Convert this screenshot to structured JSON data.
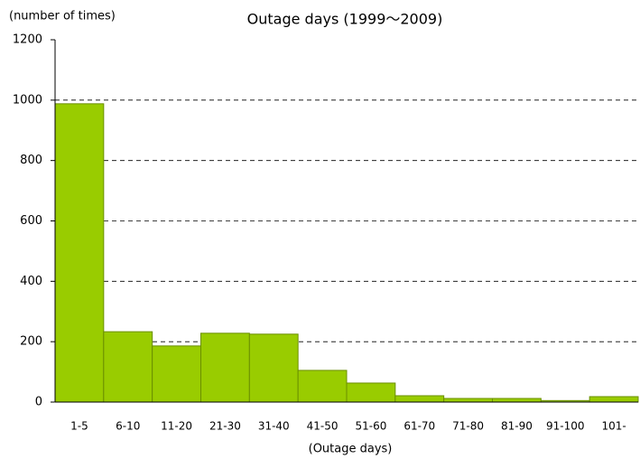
{
  "chart_data": {
    "type": "bar",
    "title": "Outage days (1999～2009)",
    "y_label": "(number of times)",
    "x_label": "(Outage days)",
    "categories": [
      "1-5",
      "6-10",
      "11-20",
      "21-30",
      "31-40",
      "41-50",
      "51-60",
      "61-70",
      "71-80",
      "81-90",
      "91-100",
      "101-"
    ],
    "values": [
      988,
      233,
      186,
      228,
      225,
      105,
      63,
      21,
      12,
      12,
      5,
      18
    ],
    "color": "#99cc00",
    "ylim": [
      0,
      1200
    ],
    "yticks": [
      0,
      200,
      400,
      600,
      800,
      1000,
      1200
    ],
    "grid": true
  }
}
